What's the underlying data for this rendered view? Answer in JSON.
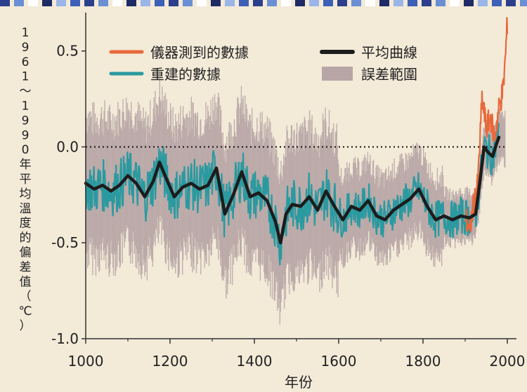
{
  "chart_data": {
    "type": "line",
    "title": "",
    "xlabel": "年份",
    "ylabel": "1961～1990年平均溫度的偏差值（℃）",
    "xlim": [
      1000,
      2000
    ],
    "ylim": [
      -1.0,
      0.7
    ],
    "x_ticks": [
      "1000",
      "1200",
      "1400",
      "1600",
      "1800",
      "2000"
    ],
    "y_ticks": [
      "0.5",
      "0.0",
      "-0.5",
      "-1.0"
    ],
    "zero_line": "dotted",
    "grid": false,
    "legend_position": "top",
    "legend": [
      {
        "name": "儀器測到的數據",
        "color": "#e8683a"
      },
      {
        "name": "平均曲線",
        "color": "#1c1c1c"
      },
      {
        "name": "重建的數據",
        "color": "#2a9aa0"
      },
      {
        "name": "誤差範圍",
        "color": "#b8a6a6"
      }
    ],
    "series": [
      {
        "name": "平均曲線",
        "color": "#1c1c1c",
        "x": [
          1000,
          1020,
          1040,
          1060,
          1080,
          1100,
          1120,
          1140,
          1160,
          1175,
          1190,
          1210,
          1230,
          1250,
          1270,
          1290,
          1310,
          1330,
          1350,
          1370,
          1390,
          1410,
          1430,
          1450,
          1462,
          1475,
          1490,
          1510,
          1530,
          1550,
          1570,
          1590,
          1610,
          1630,
          1650,
          1670,
          1690,
          1710,
          1730,
          1750,
          1770,
          1790,
          1810,
          1830,
          1850,
          1870,
          1890,
          1910,
          1925,
          1935,
          1945,
          1955,
          1965,
          1975,
          1980
        ],
        "values": [
          -0.19,
          -0.22,
          -0.2,
          -0.23,
          -0.2,
          -0.15,
          -0.19,
          -0.26,
          -0.18,
          -0.08,
          -0.16,
          -0.26,
          -0.21,
          -0.19,
          -0.22,
          -0.2,
          -0.11,
          -0.35,
          -0.25,
          -0.13,
          -0.26,
          -0.24,
          -0.28,
          -0.39,
          -0.5,
          -0.35,
          -0.3,
          -0.31,
          -0.26,
          -0.33,
          -0.23,
          -0.31,
          -0.38,
          -0.31,
          -0.33,
          -0.28,
          -0.36,
          -0.38,
          -0.33,
          -0.3,
          -0.27,
          -0.22,
          -0.31,
          -0.38,
          -0.36,
          -0.38,
          -0.36,
          -0.37,
          -0.35,
          -0.18,
          0.0,
          -0.03,
          -0.05,
          0.02,
          0.05
        ]
      },
      {
        "name": "儀器測到的數據",
        "color": "#e8683a",
        "x": [
          1900,
          1910,
          1920,
          1930,
          1940,
          1950,
          1960,
          1970,
          1980,
          1990,
          1995,
          2000
        ],
        "values": [
          -0.35,
          -0.45,
          -0.3,
          -0.2,
          0.25,
          0.1,
          0.15,
          0.05,
          0.2,
          0.3,
          0.45,
          0.65
        ]
      }
    ]
  }
}
